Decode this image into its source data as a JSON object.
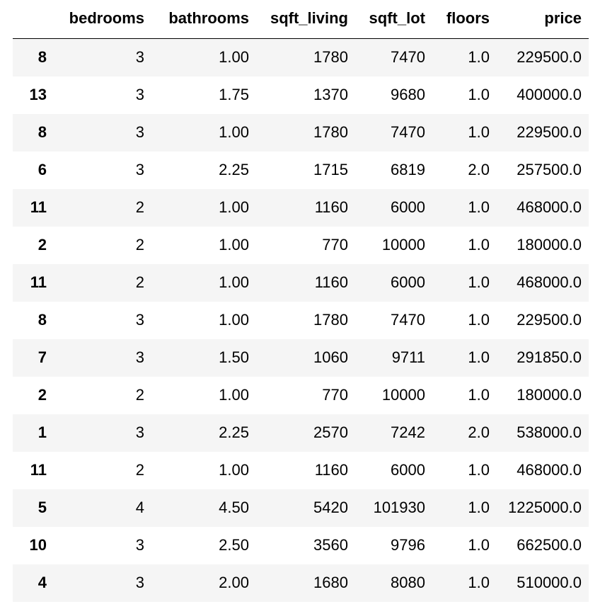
{
  "table": {
    "columns": [
      "",
      "bedrooms",
      "bathrooms",
      "sqft_living",
      "sqft_lot",
      "floors",
      "price"
    ],
    "rows": [
      {
        "index": "8",
        "bedrooms": "3",
        "bathrooms": "1.00",
        "sqft_living": "1780",
        "sqft_lot": "7470",
        "floors": "1.0",
        "price": "229500.0"
      },
      {
        "index": "13",
        "bedrooms": "3",
        "bathrooms": "1.75",
        "sqft_living": "1370",
        "sqft_lot": "9680",
        "floors": "1.0",
        "price": "400000.0"
      },
      {
        "index": "8",
        "bedrooms": "3",
        "bathrooms": "1.00",
        "sqft_living": "1780",
        "sqft_lot": "7470",
        "floors": "1.0",
        "price": "229500.0"
      },
      {
        "index": "6",
        "bedrooms": "3",
        "bathrooms": "2.25",
        "sqft_living": "1715",
        "sqft_lot": "6819",
        "floors": "2.0",
        "price": "257500.0"
      },
      {
        "index": "11",
        "bedrooms": "2",
        "bathrooms": "1.00",
        "sqft_living": "1160",
        "sqft_lot": "6000",
        "floors": "1.0",
        "price": "468000.0"
      },
      {
        "index": "2",
        "bedrooms": "2",
        "bathrooms": "1.00",
        "sqft_living": "770",
        "sqft_lot": "10000",
        "floors": "1.0",
        "price": "180000.0"
      },
      {
        "index": "11",
        "bedrooms": "2",
        "bathrooms": "1.00",
        "sqft_living": "1160",
        "sqft_lot": "6000",
        "floors": "1.0",
        "price": "468000.0"
      },
      {
        "index": "8",
        "bedrooms": "3",
        "bathrooms": "1.00",
        "sqft_living": "1780",
        "sqft_lot": "7470",
        "floors": "1.0",
        "price": "229500.0"
      },
      {
        "index": "7",
        "bedrooms": "3",
        "bathrooms": "1.50",
        "sqft_living": "1060",
        "sqft_lot": "9711",
        "floors": "1.0",
        "price": "291850.0"
      },
      {
        "index": "2",
        "bedrooms": "2",
        "bathrooms": "1.00",
        "sqft_living": "770",
        "sqft_lot": "10000",
        "floors": "1.0",
        "price": "180000.0"
      },
      {
        "index": "1",
        "bedrooms": "3",
        "bathrooms": "2.25",
        "sqft_living": "2570",
        "sqft_lot": "7242",
        "floors": "2.0",
        "price": "538000.0"
      },
      {
        "index": "11",
        "bedrooms": "2",
        "bathrooms": "1.00",
        "sqft_living": "1160",
        "sqft_lot": "6000",
        "floors": "1.0",
        "price": "468000.0"
      },
      {
        "index": "5",
        "bedrooms": "4",
        "bathrooms": "4.50",
        "sqft_living": "5420",
        "sqft_lot": "101930",
        "floors": "1.0",
        "price": "1225000.0"
      },
      {
        "index": "10",
        "bedrooms": "3",
        "bathrooms": "2.50",
        "sqft_living": "3560",
        "sqft_lot": "9796",
        "floors": "1.0",
        "price": "662500.0"
      },
      {
        "index": "4",
        "bedrooms": "3",
        "bathrooms": "2.00",
        "sqft_living": "1680",
        "sqft_lot": "8080",
        "floors": "1.0",
        "price": "510000.0"
      }
    ]
  }
}
